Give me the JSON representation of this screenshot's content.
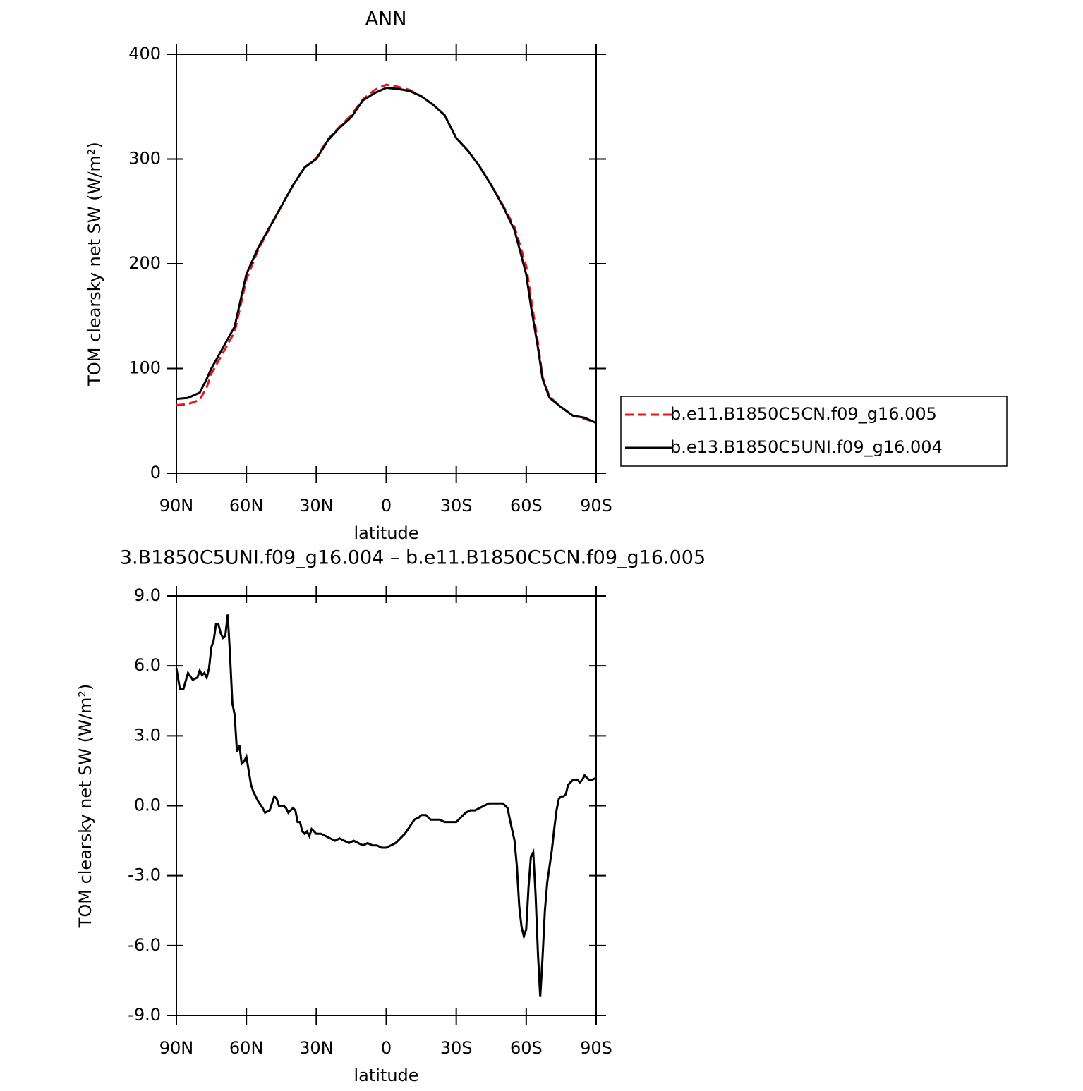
{
  "chart_data": [
    {
      "type": "line",
      "title": "ANN",
      "x_label": "latitude",
      "y_label": "TOM clearsky net SW (W/m²)",
      "x": [
        90,
        85,
        80,
        77,
        75,
        70,
        65,
        60,
        55,
        50,
        45,
        40,
        35,
        30,
        25,
        20,
        15,
        10,
        5,
        0,
        -5,
        -10,
        -15,
        -20,
        -25,
        -30,
        -35,
        -40,
        -45,
        -50,
        -55,
        -60,
        -62,
        -65,
        -67,
        -70,
        -75,
        -80,
        -85,
        -90
      ],
      "series": [
        {
          "name": "b.e11.B1850C5CN.f09_g16.005",
          "color": "#e8141a",
          "line_style": "dashed",
          "values": [
            65,
            66,
            70,
            82,
            95,
            115,
            135,
            185,
            213,
            234,
            255,
            275,
            292,
            301,
            319,
            331,
            342,
            357,
            366,
            371,
            369,
            366,
            360,
            352,
            342,
            320,
            308,
            293,
            275,
            256,
            235,
            198,
            168,
            125,
            92,
            73,
            63,
            55,
            52,
            48
          ]
        },
        {
          "name": "b.e13.B1850C5UNI.f09_g16.004",
          "color": "#000000",
          "line_style": "solid",
          "values": [
            71,
            72,
            77,
            90,
            100,
            120,
            140,
            190,
            215,
            235,
            255,
            275,
            292,
            300,
            318,
            330,
            340,
            356,
            363,
            368,
            367,
            365,
            360,
            352,
            342,
            320,
            308,
            293,
            275,
            255,
            232,
            190,
            160,
            120,
            90,
            72,
            63,
            55,
            53,
            48
          ]
        }
      ],
      "xlim": [
        90,
        -90
      ],
      "xticks": [
        {
          "value": 90,
          "label": "90N"
        },
        {
          "value": 60,
          "label": "60N"
        },
        {
          "value": 30,
          "label": "30N"
        },
        0,
        {
          "value": -30,
          "label": "30S"
        },
        {
          "value": -60,
          "label": "60S"
        },
        {
          "value": -90,
          "label": "90S"
        }
      ],
      "ylim": [
        0,
        400
      ],
      "yticks": [
        0,
        100,
        200,
        300,
        400
      ],
      "legend": "right"
    },
    {
      "type": "line",
      "title": "3.B1850C5UNI.f09_g16.004 – b.e11.B1850C5CN.f09_g16.005",
      "x_label": "latitude",
      "y_label": "TOM clearsky net SW (W/m²)",
      "x": [
        90,
        88.5,
        87,
        85,
        83,
        81,
        80,
        79,
        78,
        77,
        76,
        75,
        74,
        73,
        72,
        71,
        70,
        69,
        68,
        67,
        66,
        65,
        64,
        63,
        62,
        61,
        60,
        59,
        58,
        57,
        55,
        53,
        52,
        50,
        48,
        47,
        46,
        44,
        43,
        42,
        40,
        39,
        38,
        37,
        36,
        35,
        34,
        33,
        32,
        30,
        28,
        26,
        24,
        22,
        20,
        18,
        16,
        14,
        12,
        10,
        8,
        6,
        4,
        2,
        0,
        -2,
        -4,
        -6,
        -8,
        -10,
        -12,
        -14,
        -15,
        -17,
        -19,
        -21,
        -23,
        -25,
        -27,
        -30,
        -32,
        -34,
        -36,
        -38,
        -40,
        -42,
        -44,
        -46,
        -48,
        -50,
        -52,
        -53,
        -55,
        -56,
        -57,
        -58,
        -59,
        -60,
        -61,
        -62,
        -63,
        -64,
        -65,
        -66,
        -67,
        -68,
        -69,
        -70,
        -71,
        -72,
        -73,
        -74,
        -75,
        -76,
        -77,
        -78,
        -79,
        -80,
        -82,
        -83,
        -84,
        -85,
        -86,
        -87,
        -88,
        -90
      ],
      "series": [
        {
          "color": "#000000",
          "line_style": "solid",
          "values": [
            5.9,
            5.0,
            5.0,
            5.7,
            5.4,
            5.5,
            5.8,
            5.6,
            5.7,
            5.5,
            5.9,
            6.8,
            7.1,
            7.8,
            7.8,
            7.4,
            7.2,
            7.3,
            8.2,
            6.5,
            4.4,
            3.9,
            2.3,
            2.6,
            1.8,
            1.9,
            2.1,
            1.5,
            0.9,
            0.6,
            0.2,
            -0.1,
            -0.3,
            -0.2,
            0.4,
            0.3,
            0.0,
            0.0,
            -0.1,
            -0.3,
            -0.1,
            -0.2,
            -0.7,
            -0.7,
            -1.1,
            -1.2,
            -1.1,
            -1.3,
            -1.0,
            -1.2,
            -1.2,
            -1.3,
            -1.4,
            -1.5,
            -1.4,
            -1.5,
            -1.6,
            -1.5,
            -1.6,
            -1.7,
            -1.6,
            -1.7,
            -1.7,
            -1.8,
            -1.8,
            -1.7,
            -1.6,
            -1.4,
            -1.2,
            -0.9,
            -0.6,
            -0.5,
            -0.4,
            -0.4,
            -0.6,
            -0.6,
            -0.6,
            -0.7,
            -0.7,
            -0.7,
            -0.5,
            -0.3,
            -0.2,
            -0.2,
            -0.1,
            0.0,
            0.1,
            0.1,
            0.1,
            0.1,
            -0.1,
            -0.6,
            -1.5,
            -2.6,
            -4.3,
            -5.2,
            -5.6,
            -5.3,
            -3.5,
            -2.2,
            -2.0,
            -3.8,
            -6.3,
            -8.2,
            -6.5,
            -4.5,
            -3.3,
            -2.6,
            -1.9,
            -1.0,
            -0.2,
            0.3,
            0.4,
            0.4,
            0.5,
            0.9,
            1.0,
            1.1,
            1.1,
            1.0,
            1.1,
            1.3,
            1.2,
            1.1,
            1.1,
            1.2
          ]
        }
      ],
      "xlim": [
        90,
        -90
      ],
      "xticks": [
        {
          "value": 90,
          "label": "90N"
        },
        {
          "value": 60,
          "label": "60N"
        },
        {
          "value": 30,
          "label": "30N"
        },
        0,
        {
          "value": -30,
          "label": "30S"
        },
        {
          "value": -60,
          "label": "60S"
        },
        {
          "value": -90,
          "label": "90S"
        }
      ],
      "ylim": [
        -9,
        9
      ],
      "yticks": [
        {
          "value": -9,
          "label": "-9.0"
        },
        {
          "value": -6,
          "label": "-6.0"
        },
        {
          "value": -3,
          "label": "-3.0"
        },
        {
          "value": 0,
          "label": "0.0"
        },
        {
          "value": 3,
          "label": "3.0"
        },
        {
          "value": 6,
          "label": "6.0"
        },
        {
          "value": 9,
          "label": "9.0"
        }
      ]
    }
  ]
}
